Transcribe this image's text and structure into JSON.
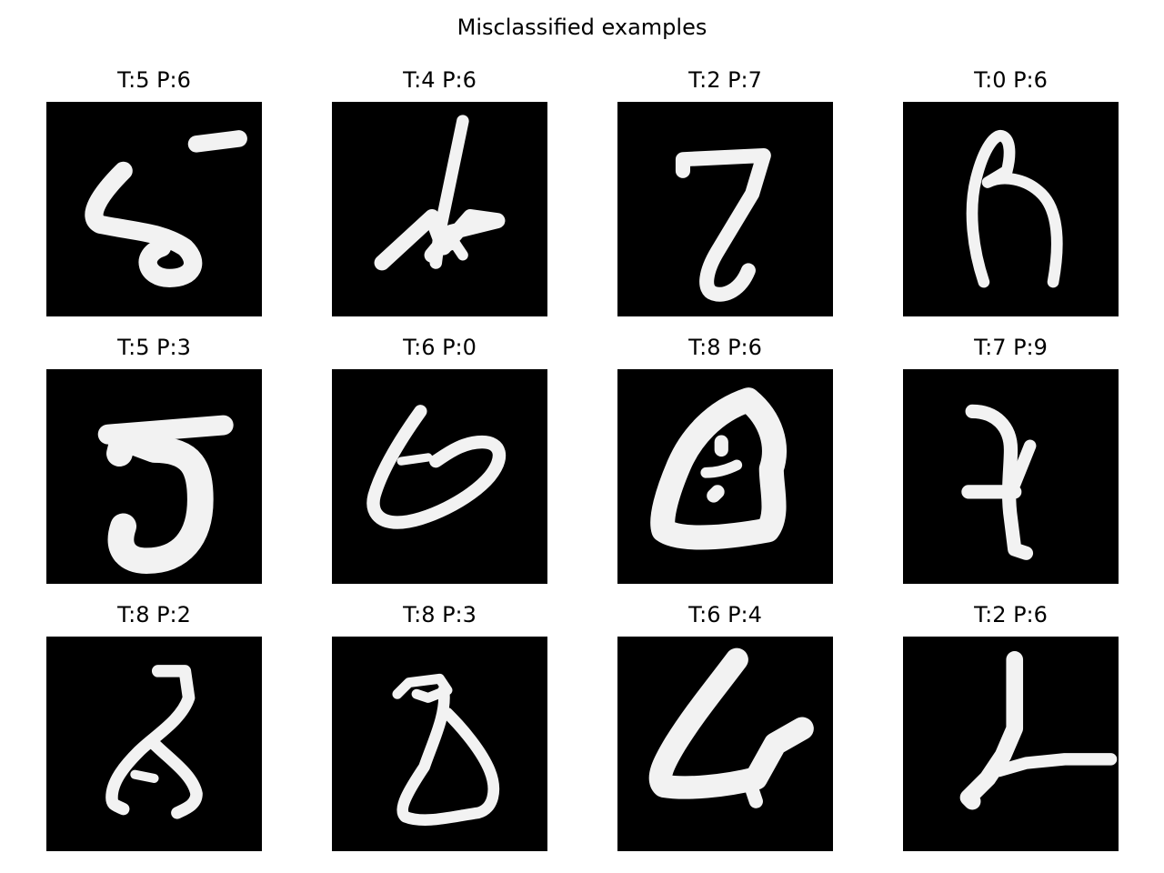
{
  "figure": {
    "title": "Misclassified examples"
  },
  "samples": [
    {
      "label": "T:5 P:6",
      "true": 5,
      "pred": 6
    },
    {
      "label": "T:4 P:6",
      "true": 4,
      "pred": 6
    },
    {
      "label": "T:2 P:7",
      "true": 2,
      "pred": 7
    },
    {
      "label": "T:0 P:6",
      "true": 0,
      "pred": 6
    },
    {
      "label": "T:5 P:3",
      "true": 5,
      "pred": 3
    },
    {
      "label": "T:6 P:0",
      "true": 6,
      "pred": 0
    },
    {
      "label": "T:8 P:6",
      "true": 8,
      "pred": 6
    },
    {
      "label": "T:7 P:9",
      "true": 7,
      "pred": 9
    },
    {
      "label": "T:8 P:2",
      "true": 8,
      "pred": 2
    },
    {
      "label": "T:8 P:3",
      "true": 8,
      "pred": 3
    },
    {
      "label": "T:6 P:4",
      "true": 6,
      "pred": 4
    },
    {
      "label": "T:2 P:6",
      "true": 2,
      "pred": 6
    }
  ],
  "colors": {
    "background": "#ffffff",
    "image_background": "#000000",
    "stroke": "#f2f2f2"
  }
}
